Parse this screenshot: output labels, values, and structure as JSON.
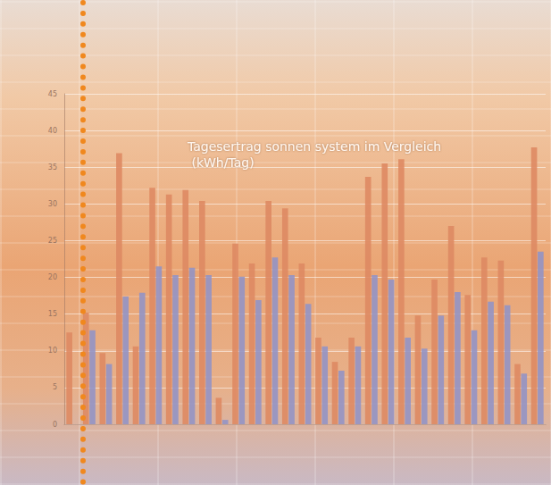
{
  "chart_data": {
    "type": "bar",
    "title": "Tagesertrag sonnen system im Vergleich (kWh/Tag)",
    "categories": [
      null,
      null,
      null,
      null,
      null,
      null,
      null,
      null,
      null,
      null,
      null,
      null,
      null,
      null,
      null,
      null,
      null,
      null,
      null,
      null,
      null,
      null,
      null,
      null,
      null,
      null,
      null,
      null,
      null
    ],
    "series": [
      {
        "color": "#de8a63",
        "values": [
          12.5,
          15.2,
          9.7,
          36.9,
          10.6,
          32.2,
          31.3,
          31.9,
          30.4,
          3.6,
          24.6,
          21.9,
          30.4,
          29.4,
          21.9,
          11.8,
          8.5,
          11.8,
          33.7,
          35.5,
          36.1,
          14.8,
          19.7,
          27.0,
          17.6,
          22.7,
          22.3,
          8.2,
          37.7
        ]
      },
      {
        "color": "#9494c4",
        "values": [
          null,
          12.8,
          8.2,
          17.4,
          17.9,
          21.5,
          20.3,
          21.3,
          20.3,
          0.6,
          20.1,
          16.9,
          22.7,
          20.3,
          16.4,
          10.6,
          7.3,
          10.6,
          20.3,
          19.7,
          11.8,
          10.3,
          14.8,
          18.0,
          12.8,
          16.7,
          16.2,
          6.9,
          23.5
        ]
      }
    ],
    "ylim": [
      0,
      45
    ],
    "yticks": [
      0,
      5,
      10,
      15,
      20,
      25,
      30,
      35,
      40,
      45
    ],
    "grid": true,
    "tick_labels": "y"
  }
}
